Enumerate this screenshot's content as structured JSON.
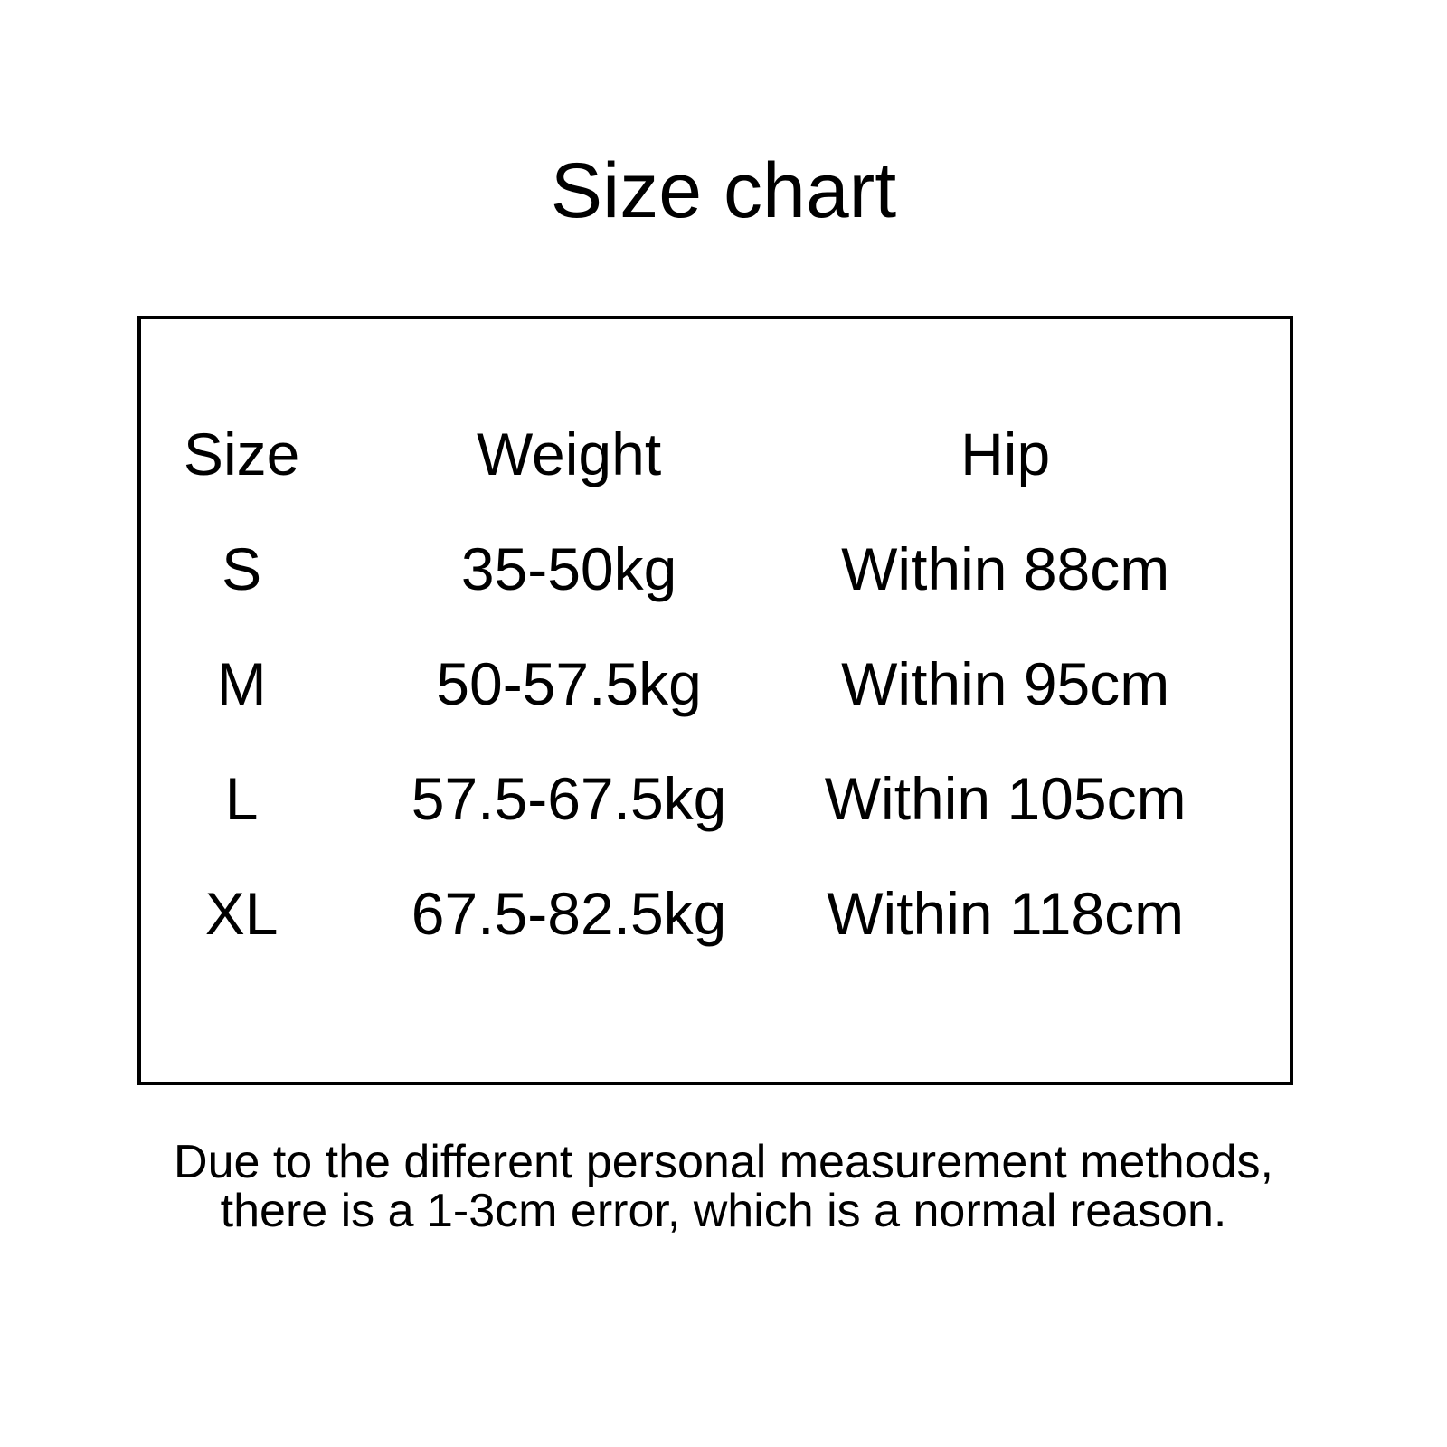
{
  "page": {
    "background_color": "#ffffff",
    "text_color": "#000000",
    "border_color": "#000000"
  },
  "chart_data": {
    "type": "table",
    "title": "Size chart",
    "columns": [
      "Size",
      "Weight",
      "Hip"
    ],
    "rows": [
      [
        "S",
        "35-50kg",
        "Within 88cm"
      ],
      [
        "M",
        "50-57.5kg",
        "Within 95cm"
      ],
      [
        "L",
        "57.5-67.5kg",
        "Within 105cm"
      ],
      [
        "XL",
        "67.5-82.5kg",
        "Within 118cm"
      ]
    ]
  },
  "footnote": {
    "line1": "Due to the different personal measurement methods,",
    "line2": "there is a 1-3cm error, which is a normal reason."
  }
}
